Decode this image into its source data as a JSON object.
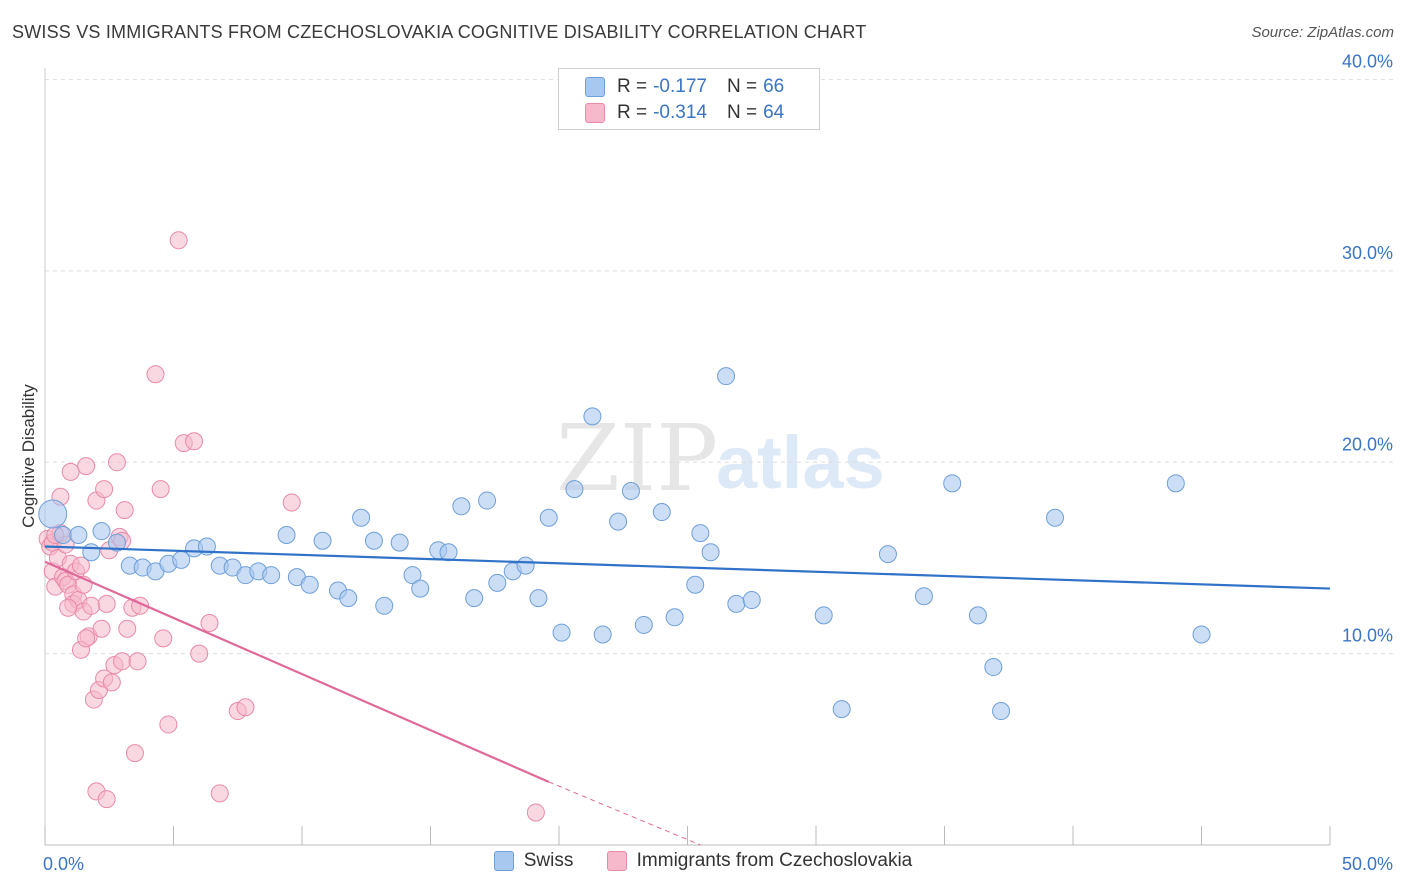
{
  "title": "SWISS VS IMMIGRANTS FROM CZECHOSLOVAKIA COGNITIVE DISABILITY CORRELATION CHART",
  "source": "Source: ZipAtlas.com",
  "watermark": {
    "zip": "ZIP",
    "atlas": "atlas"
  },
  "stats": {
    "swiss": {
      "r_label": "R =",
      "r": "-0.177",
      "n_label": "N =",
      "n": "66"
    },
    "czech": {
      "r_label": "R =",
      "r": "-0.314",
      "n_label": "N =",
      "n": "64"
    }
  },
  "colors": {
    "swiss_fill": "#a8c8f0",
    "swiss_stroke": "#6f9fd8",
    "swiss_line": "#2f72c8",
    "czech_fill": "#f6b8cb",
    "czech_stroke": "#e98aa8",
    "czech_line": "#e0699a",
    "tick_label": "#3a75c4",
    "grid": "#dddddd"
  },
  "chart_data": {
    "type": "scatter",
    "title": "SWISS VS IMMIGRANTS FROM CZECHOSLOVAKIA COGNITIVE DISABILITY CORRELATION CHART",
    "xlabel": "",
    "ylabel": "Cognitive Disability",
    "xlim": [
      0,
      50
    ],
    "ylim": [
      0,
      40.5
    ],
    "x_tick_labels": [
      "0.0%",
      "50.0%"
    ],
    "y_ticks": [
      10,
      20,
      30,
      40
    ],
    "y_tick_labels": [
      "10.0%",
      "20.0%",
      "30.0%",
      "40.0%"
    ],
    "grid": "horizontal dashed",
    "legend_placement": "bottom-center",
    "series": [
      {
        "name": "Swiss",
        "trend": {
          "x0": 0,
          "y0": 15.6,
          "x1": 50,
          "y1": 13.4
        },
        "points": [
          [
            0.3,
            17.3
          ],
          [
            0.7,
            16.2
          ],
          [
            1.3,
            16.2
          ],
          [
            1.8,
            15.3
          ],
          [
            2.2,
            16.4
          ],
          [
            2.8,
            15.8
          ],
          [
            3.3,
            14.6
          ],
          [
            3.8,
            14.5
          ],
          [
            4.3,
            14.3
          ],
          [
            4.8,
            14.7
          ],
          [
            5.3,
            14.9
          ],
          [
            5.8,
            15.5
          ],
          [
            6.3,
            15.6
          ],
          [
            6.8,
            14.6
          ],
          [
            7.3,
            14.5
          ],
          [
            7.8,
            14.1
          ],
          [
            8.3,
            14.3
          ],
          [
            8.8,
            14.1
          ],
          [
            9.4,
            16.2
          ],
          [
            9.8,
            14.0
          ],
          [
            10.3,
            13.6
          ],
          [
            10.8,
            15.9
          ],
          [
            11.4,
            13.3
          ],
          [
            11.8,
            12.9
          ],
          [
            12.3,
            17.1
          ],
          [
            12.8,
            15.9
          ],
          [
            13.2,
            12.5
          ],
          [
            13.8,
            15.8
          ],
          [
            14.3,
            14.1
          ],
          [
            14.6,
            13.4
          ],
          [
            15.3,
            15.4
          ],
          [
            15.7,
            15.3
          ],
          [
            16.2,
            17.7
          ],
          [
            16.7,
            12.9
          ],
          [
            17.2,
            18.0
          ],
          [
            17.6,
            13.7
          ],
          [
            18.2,
            14.3
          ],
          [
            18.7,
            14.6
          ],
          [
            19.2,
            12.9
          ],
          [
            19.6,
            17.1
          ],
          [
            20.1,
            11.1
          ],
          [
            20.6,
            18.6
          ],
          [
            21.3,
            22.4
          ],
          [
            21.7,
            11.0
          ],
          [
            22.3,
            16.9
          ],
          [
            22.8,
            18.5
          ],
          [
            23.3,
            11.5
          ],
          [
            24.0,
            17.4
          ],
          [
            24.5,
            11.9
          ],
          [
            25.3,
            13.6
          ],
          [
            25.5,
            16.3
          ],
          [
            25.9,
            15.3
          ],
          [
            26.5,
            24.5
          ],
          [
            26.9,
            12.6
          ],
          [
            27.5,
            12.8
          ],
          [
            30.3,
            12.0
          ],
          [
            31.0,
            7.1
          ],
          [
            32.8,
            15.2
          ],
          [
            34.2,
            13.0
          ],
          [
            35.3,
            18.9
          ],
          [
            36.3,
            12.0
          ],
          [
            36.9,
            9.3
          ],
          [
            37.2,
            7.0
          ],
          [
            39.3,
            17.1
          ],
          [
            44.0,
            18.9
          ],
          [
            45.0,
            11.0
          ]
        ]
      },
      {
        "name": "Immigrants from Czechoslovakia",
        "trend": {
          "x0": 0,
          "y0": 14.8,
          "x1": 19.6,
          "y1": 3.3,
          "dash_to_x": 25.5,
          "dash_to_y": 0
        },
        "points": [
          [
            0.1,
            16.0
          ],
          [
            0.2,
            15.6
          ],
          [
            0.3,
            15.8
          ],
          [
            0.3,
            14.3
          ],
          [
            0.4,
            13.5
          ],
          [
            0.5,
            15.0
          ],
          [
            0.6,
            16.3
          ],
          [
            0.6,
            18.2
          ],
          [
            0.7,
            14.0
          ],
          [
            0.8,
            15.7
          ],
          [
            0.8,
            13.8
          ],
          [
            0.9,
            13.6
          ],
          [
            1.0,
            14.7
          ],
          [
            1.0,
            19.5
          ],
          [
            1.1,
            13.1
          ],
          [
            1.1,
            12.6
          ],
          [
            1.2,
            14.3
          ],
          [
            1.3,
            12.8
          ],
          [
            1.4,
            10.2
          ],
          [
            1.4,
            14.6
          ],
          [
            1.5,
            12.2
          ],
          [
            1.6,
            19.8
          ],
          [
            1.7,
            10.9
          ],
          [
            1.8,
            12.5
          ],
          [
            1.9,
            7.6
          ],
          [
            2.0,
            18.0
          ],
          [
            2.1,
            8.1
          ],
          [
            2.2,
            11.3
          ],
          [
            2.3,
            18.6
          ],
          [
            2.3,
            8.7
          ],
          [
            2.4,
            12.6
          ],
          [
            2.5,
            15.4
          ],
          [
            2.6,
            8.5
          ],
          [
            2.7,
            9.4
          ],
          [
            2.8,
            20.0
          ],
          [
            2.9,
            16.1
          ],
          [
            3.0,
            9.6
          ],
          [
            3.1,
            17.5
          ],
          [
            3.2,
            11.3
          ],
          [
            3.4,
            12.4
          ],
          [
            3.5,
            4.8
          ],
          [
            3.6,
            9.6
          ],
          [
            3.7,
            12.5
          ],
          [
            4.3,
            24.6
          ],
          [
            4.5,
            18.6
          ],
          [
            4.6,
            10.8
          ],
          [
            4.8,
            6.3
          ],
          [
            5.2,
            31.6
          ],
          [
            5.4,
            21.0
          ],
          [
            5.8,
            21.1
          ],
          [
            6.0,
            10.0
          ],
          [
            6.4,
            11.6
          ],
          [
            6.8,
            2.7
          ],
          [
            7.5,
            7.0
          ],
          [
            7.8,
            7.2
          ],
          [
            9.6,
            17.9
          ],
          [
            19.1,
            1.7
          ],
          [
            1.6,
            10.8
          ],
          [
            2.0,
            2.8
          ],
          [
            2.4,
            2.4
          ],
          [
            0.9,
            12.4
          ],
          [
            1.5,
            13.6
          ],
          [
            3.0,
            15.9
          ],
          [
            0.4,
            16.2
          ]
        ]
      }
    ]
  }
}
